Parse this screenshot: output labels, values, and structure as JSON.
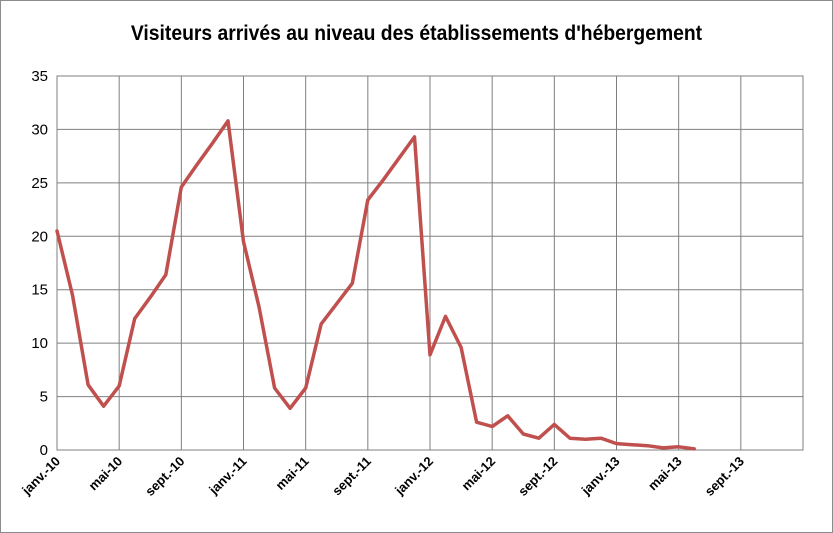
{
  "chart_data": {
    "type": "line",
    "title": "Visiteurs arrivés au niveau des établissements d'hébergement",
    "xlabel": "",
    "ylabel": "",
    "ylim": [
      0,
      35
    ],
    "yticks": [
      0,
      5,
      10,
      15,
      20,
      25,
      30,
      35
    ],
    "xtick_labels": [
      "janv.-10",
      "mai-10",
      "sept.-10",
      "janv.-11",
      "mai-11",
      "sept.-11",
      "janv.-12",
      "mai-12",
      "sept.-12",
      "janv.-13",
      "mai-13",
      "sept.-13"
    ],
    "x_range": [
      "2010-01",
      "2014-01"
    ],
    "grid": true,
    "legend": "none",
    "series": [
      {
        "color": "#c0504d",
        "x": [
          "2010-01",
          "2010-02",
          "2010-03",
          "2010-04",
          "2010-05",
          "2010-06",
          "2010-07",
          "2010-08",
          "2010-09",
          "2010-10",
          "2010-11",
          "2010-12",
          "2011-01",
          "2011-02",
          "2011-03",
          "2011-04",
          "2011-05",
          "2011-06",
          "2011-07",
          "2011-08",
          "2011-09",
          "2011-10",
          "2011-11",
          "2011-12",
          "2012-01",
          "2012-02",
          "2012-03",
          "2012-04",
          "2012-05",
          "2012-06",
          "2012-07",
          "2012-08",
          "2012-09",
          "2012-10",
          "2012-11",
          "2012-12",
          "2013-01",
          "2013-02",
          "2013-03",
          "2013-04",
          "2013-05",
          "2013-06"
        ],
        "values": [
          20.5,
          14.5,
          6.1,
          4.1,
          6.0,
          12.3,
          14.3,
          16.4,
          24.6,
          26.7,
          28.7,
          30.8,
          19.5,
          13.4,
          5.8,
          3.9,
          5.8,
          11.8,
          13.7,
          15.6,
          23.4,
          25.3,
          27.3,
          29.3,
          8.9,
          12.5,
          9.6,
          2.6,
          2.2,
          3.2,
          1.5,
          1.1,
          2.4,
          1.1,
          1.0,
          1.1,
          0.6,
          0.5,
          0.4,
          0.2,
          0.3,
          0.1
        ]
      }
    ]
  }
}
